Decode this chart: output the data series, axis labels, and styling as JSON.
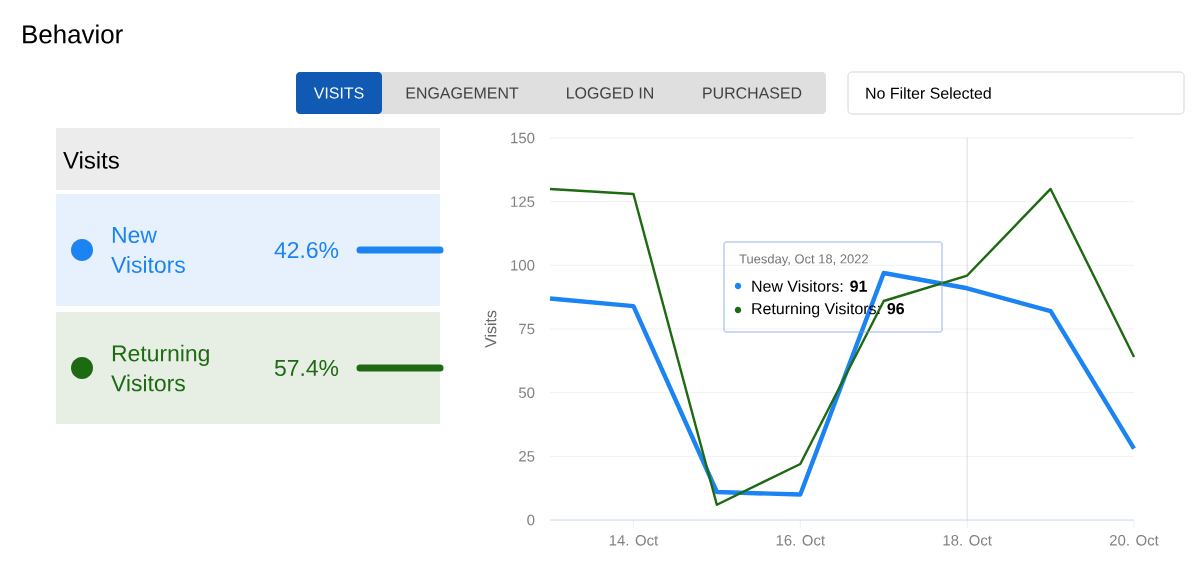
{
  "chart_data": {
    "type": "line",
    "title": "Behavior",
    "ylabel": "Visits",
    "legend_title": "Visits",
    "x": [
      "2022-10-13",
      "2022-10-14",
      "2022-10-15",
      "2022-10-16",
      "2022-10-17",
      "2022-10-18",
      "2022-10-19",
      "2022-10-20"
    ],
    "series": [
      {
        "name": "New Visitors",
        "color": "#1b84f2",
        "values": [
          87,
          84,
          11,
          10,
          97,
          91,
          82,
          28
        ]
      },
      {
        "name": "Returning Visitors",
        "color": "#1d6a12",
        "values": [
          130,
          128,
          6,
          22,
          86,
          96,
          130,
          64
        ]
      }
    ],
    "xlim": [
      "2022-10-13",
      "2022-10-20"
    ],
    "xticks": [
      {
        "value": "2022-10-14",
        "label": "14. Oct"
      },
      {
        "value": "2022-10-16",
        "label": "16. Oct"
      },
      {
        "value": "2022-10-18",
        "label": "18. Oct"
      },
      {
        "value": "2022-10-20",
        "label": "20. Oct"
      }
    ],
    "ylim": [
      0,
      150
    ],
    "yticks": [
      0,
      25,
      50,
      75,
      100,
      125,
      150
    ],
    "grid": "y",
    "legend": "left",
    "marker": "none",
    "line_style": "solid",
    "ref_lines": [
      {
        "axis": "x",
        "value": "2022-10-18",
        "color": "#d0d4da"
      }
    ],
    "annotations": [
      "VISITS",
      "ENGAGEMENT",
      "LOGGED IN",
      "PURCHASED",
      "No Filter Selected",
      "42.6%",
      "57.4%",
      "Tuesday, Oct 18, 2022",
      "New Visitors: **91**",
      "Returning Visitors: **96**"
    ]
  }
}
